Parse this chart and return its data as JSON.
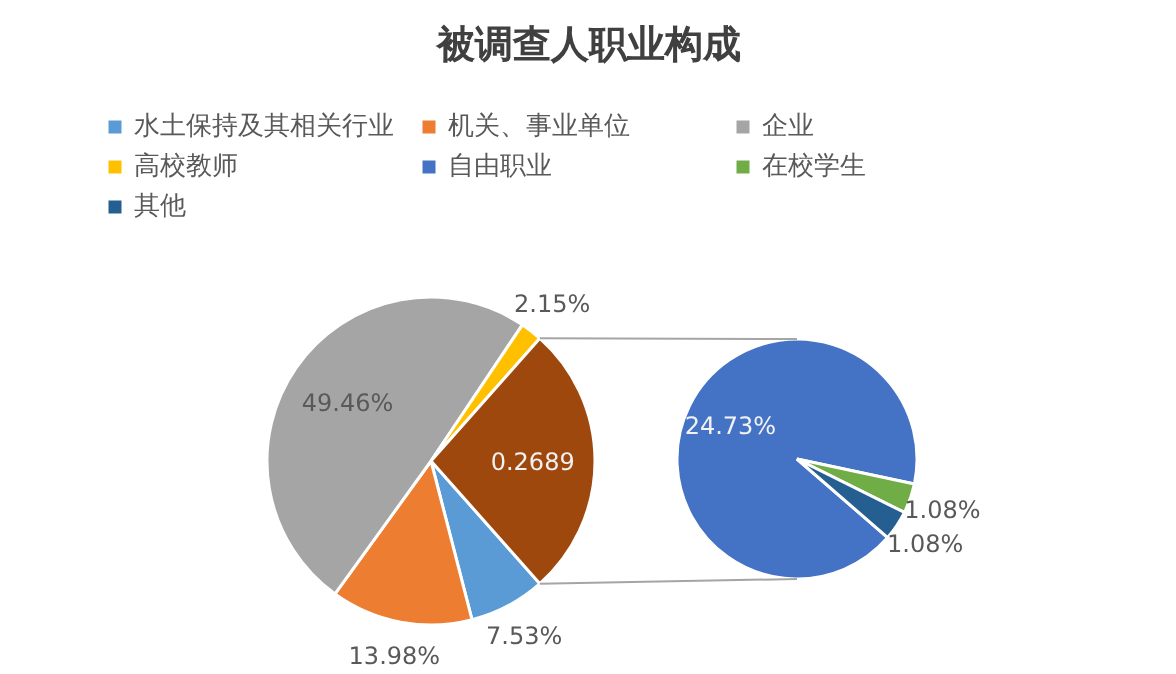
{
  "chart_data": [
    {
      "type": "pie",
      "title": "被调查人职业构成",
      "legend": "top",
      "categories": [
        "水土保持及其相关行业",
        "机关、事业单位",
        "企业",
        "高校教师",
        null
      ],
      "values": [
        0.0753,
        0.1398,
        0.4946,
        0.0215,
        0.2689
      ],
      "colors": [
        "#5b9bd5",
        "#ed7d31",
        "#a5a5a5",
        "#ffc000",
        "#9e480e"
      ],
      "value_labels": [
        "7.53%",
        "13.98%",
        "49.46%",
        "2.15%",
        "0.2689"
      ]
    },
    {
      "type": "pie",
      "legend": "top",
      "categories": [
        "自由职业",
        "在校学生",
        "其他"
      ],
      "values": [
        24.73,
        1.08,
        1.08
      ],
      "colors": [
        "#4472c4",
        "#70ad47",
        "#255e91"
      ],
      "value_labels": [
        "24.73%",
        "1.08%",
        "1.08%"
      ]
    }
  ]
}
